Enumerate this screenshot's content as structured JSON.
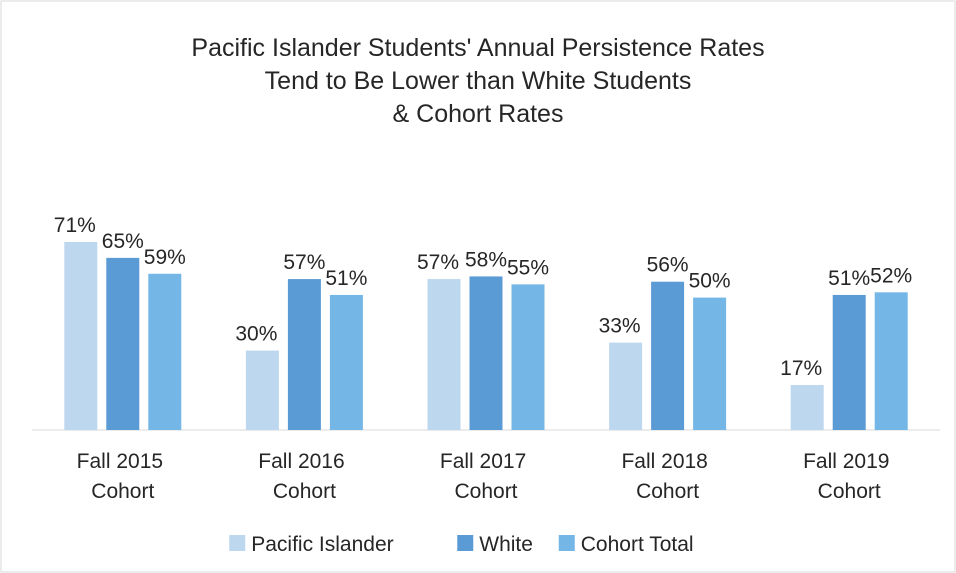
{
  "chart_data": {
    "type": "bar",
    "title": [
      "Pacific Islander Students' Annual Persistence Rates",
      "Tend to Be Lower than White Students",
      "& Cohort Rates"
    ],
    "categories": [
      "Fall 2015 Cohort",
      "Fall 2016 Cohort",
      "Fall 2017 Cohort",
      "Fall 2018 Cohort",
      "Fall 2019 Cohort"
    ],
    "series": [
      {
        "name": "Pacific Islander",
        "color": "#bdd7ee",
        "values": [
          71,
          30,
          57,
          33,
          17
        ],
        "value_labels": [
          "71%",
          "30%",
          "57%",
          "33%",
          "17%"
        ]
      },
      {
        "name": "White",
        "color": "#5b9bd5",
        "values": [
          65,
          57,
          58,
          56,
          51
        ],
        "value_labels": [
          "65%",
          "57%",
          "58%",
          "56%",
          "51%"
        ]
      },
      {
        "name": "Cohort Total",
        "color": "#74b6e6",
        "values": [
          59,
          51,
          55,
          50,
          52
        ],
        "value_labels": [
          "59%",
          "51%",
          "55%",
          "50%",
          "52%"
        ]
      }
    ],
    "legend": "bottom"
  }
}
